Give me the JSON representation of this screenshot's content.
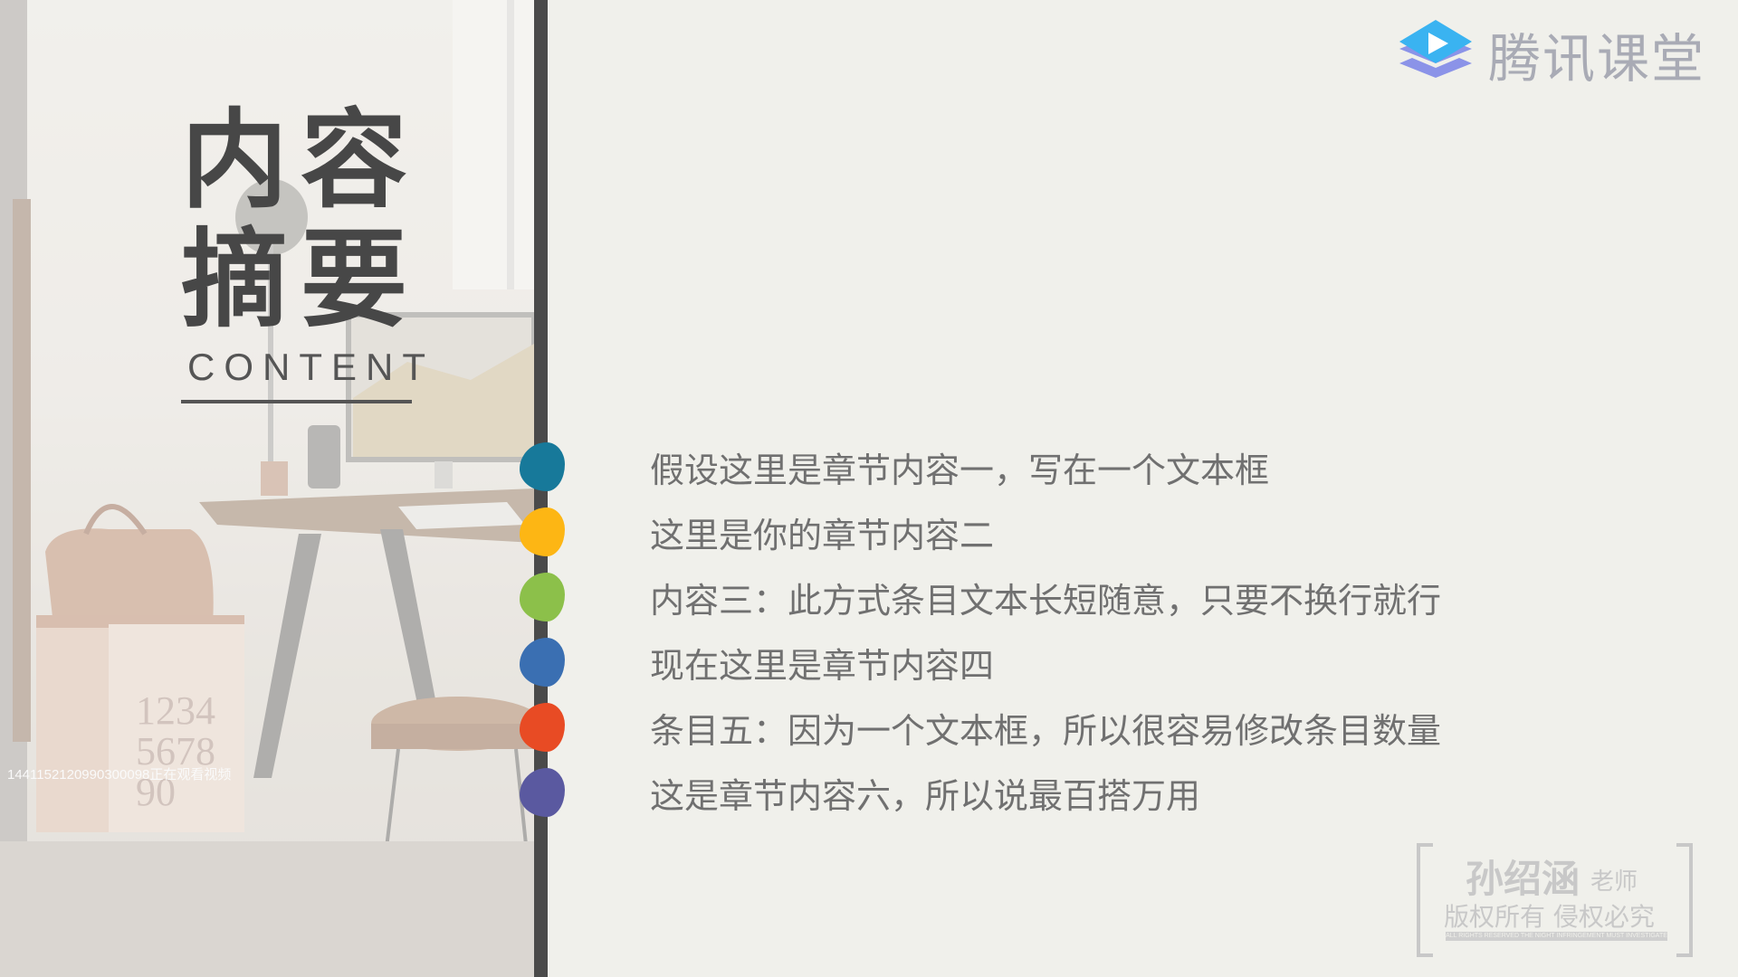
{
  "title": {
    "line1": "内容",
    "line2": "摘要",
    "english": "CONTENT"
  },
  "logo": {
    "text": "腾讯课堂"
  },
  "photo_overlay_text": "1441152120990300098正在观看视频",
  "items": [
    {
      "text": "假设这里是章节内容一，写在一个文本框",
      "color": "#17799a"
    },
    {
      "text": "这里是你的章节内容二",
      "color": "#fdb614"
    },
    {
      "text": "内容三：此方式条目文本长短随意，只要不换行就行",
      "color": "#8cc04a"
    },
    {
      "text": "现在这里是章节内容四",
      "color": "#3a6fb2"
    },
    {
      "text": "条目五：因为一个文本框，所以很容易修改条目数量",
      "color": "#e84b24"
    },
    {
      "text": "这是章节内容六，所以说最百搭万用",
      "color": "#5a59a0"
    }
  ],
  "stamp": {
    "name": "孙绍涵",
    "role": "老师",
    "line": "版权所有 侵权必究",
    "small": "ALL RIGHTS RESERVED THE NIGHT INFRINGEMENT MUST INVESTIGATE"
  },
  "colors": {
    "background": "#f0f0eb",
    "divider": "#4a4a4a",
    "title": "#474747",
    "item_text": "#707070",
    "logo_text": "#a9abb5"
  }
}
